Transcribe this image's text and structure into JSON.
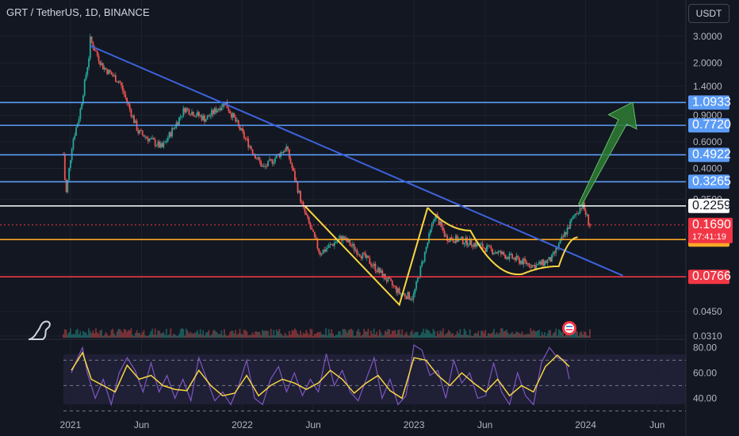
{
  "header": {
    "title": "GRT / TetherUS, 1D, BINANCE",
    "currency": "USDT",
    "countdown": "17:41:19"
  },
  "colors": {
    "background": "#131722",
    "up": "#26a69a",
    "down": "#ef5350",
    "trendline": "#3d63dd",
    "pattern": "#f7d640",
    "rsi": "#7e57c2",
    "rsi_ma": "#f7d640",
    "arrow": "#2e7d32"
  },
  "chart_data": [
    {
      "type": "candlestick",
      "title": "",
      "scale": "log",
      "ylim": [
        0.031,
        3.3
      ],
      "price_ticks": [
        "3.0000",
        "2.0000",
        "1.4000",
        "0.9000",
        "0.6000",
        "0.4000",
        "0.2500",
        "0.0800",
        "0.0450",
        "0.0310"
      ],
      "x_ticks": [
        "2021",
        "Jun",
        "2022",
        "Jun",
        "2023",
        "Jun",
        "2024",
        "Jun"
      ],
      "x_range": [
        "2020-12-17",
        "2024-08-01"
      ],
      "ohlc_path": [
        {
          "date": "2020-12-17",
          "price": 0.5
        },
        {
          "date": "2020-12-22",
          "price": 0.26
        },
        {
          "date": "2021-01-05",
          "price": 0.6
        },
        {
          "date": "2021-01-20",
          "price": 0.9
        },
        {
          "date": "2021-02-10",
          "price": 2.3
        },
        {
          "date": "2021-02-12",
          "price": 2.85
        },
        {
          "date": "2021-03-10",
          "price": 1.9
        },
        {
          "date": "2021-04-15",
          "price": 1.5
        },
        {
          "date": "2021-05-25",
          "price": 0.7
        },
        {
          "date": "2021-07-15",
          "price": 0.55
        },
        {
          "date": "2021-09-01",
          "price": 1.0
        },
        {
          "date": "2021-10-15",
          "price": 0.85
        },
        {
          "date": "2021-11-25",
          "price": 1.1
        },
        {
          "date": "2022-01-05",
          "price": 0.65
        },
        {
          "date": "2022-02-15",
          "price": 0.4
        },
        {
          "date": "2022-04-05",
          "price": 0.55
        },
        {
          "date": "2022-05-10",
          "price": 0.22
        },
        {
          "date": "2022-06-15",
          "price": 0.11
        },
        {
          "date": "2022-08-01",
          "price": 0.14
        },
        {
          "date": "2022-10-01",
          "price": 0.095
        },
        {
          "date": "2022-12-01",
          "price": 0.06
        },
        {
          "date": "2022-12-30",
          "price": 0.056
        },
        {
          "date": "2023-02-15",
          "price": 0.2
        },
        {
          "date": "2023-03-10",
          "price": 0.14
        },
        {
          "date": "2023-05-01",
          "price": 0.13
        },
        {
          "date": "2023-07-01",
          "price": 0.11
        },
        {
          "date": "2023-09-15",
          "price": 0.09
        },
        {
          "date": "2023-10-20",
          "price": 0.1
        },
        {
          "date": "2023-12-10",
          "price": 0.2
        },
        {
          "date": "2023-12-25",
          "price": 0.23
        },
        {
          "date": "2024-01-10",
          "price": 0.169
        }
      ],
      "horizontal_levels": [
        {
          "label": "1.0933",
          "value": 1.0933,
          "color": "#5b9cf6"
        },
        {
          "label": "0.7720",
          "value": 0.772,
          "color": "#5b9cf6"
        },
        {
          "label": "0.4922",
          "value": 0.4922,
          "color": "#5b9cf6"
        },
        {
          "label": "0.3265",
          "value": 0.3265,
          "color": "#5b9cf6"
        },
        {
          "label": "0.2259",
          "value": 0.2259,
          "color": "#ffffff"
        },
        {
          "label": "0.1352",
          "value": 0.1352,
          "color": "#f9a825"
        },
        {
          "label": "0.0766",
          "value": 0.0766,
          "color": "#f23645"
        }
      ],
      "current_price": {
        "label": "0.1690",
        "value": 0.169,
        "color": "#f23645"
      },
      "trendline": [
        {
          "date": "2021-02-12",
          "price": 2.6
        },
        {
          "date": "2024-03-20",
          "price": 0.078
        }
      ],
      "pattern_lines": [
        {
          "date": "2022-05-15",
          "price": 0.224
        },
        {
          "date": "2022-12-01",
          "price": 0.05
        },
        {
          "date": "2023-01-30",
          "price": 0.22
        }
      ],
      "cup_curve": [
        {
          "date": "2023-01-30",
          "price": 0.22
        },
        {
          "date": "2023-05-01",
          "price": 0.155
        },
        {
          "date": "2023-08-20",
          "price": 0.08
        },
        {
          "date": "2023-11-05",
          "price": 0.09
        },
        {
          "date": "2023-12-15",
          "price": 0.14
        }
      ],
      "arrow": {
        "from": {
          "date": "2023-12-20",
          "price": 0.23
        },
        "to": {
          "date": "2024-04-10",
          "price": 1.1
        }
      }
    },
    {
      "type": "line",
      "title": "",
      "ylim": [
        29,
        84
      ],
      "y_ticks": [
        "80.00",
        "60.00",
        "40.00"
      ],
      "bands": [
        70,
        50,
        30
      ],
      "series": [
        {
          "color": "#7e57c2",
          "points": [
            [
              0,
              60
            ],
            [
              8,
              72
            ],
            [
              14,
              80
            ],
            [
              20,
              60
            ],
            [
              30,
              40
            ],
            [
              40,
              55
            ],
            [
              50,
              35
            ],
            [
              60,
              60
            ],
            [
              70,
              72
            ],
            [
              80,
              62
            ],
            [
              90,
              45
            ],
            [
              100,
              68
            ],
            [
              110,
              45
            ],
            [
              120,
              58
            ],
            [
              130,
              40
            ],
            [
              140,
              55
            ],
            [
              150,
              38
            ],
            [
              160,
              72
            ],
            [
              170,
              55
            ],
            [
              180,
              38
            ],
            [
              190,
              45
            ],
            [
              200,
              35
            ],
            [
              210,
              50
            ],
            [
              220,
              70
            ],
            [
              230,
              40
            ],
            [
              240,
              35
            ],
            [
              250,
              55
            ],
            [
              260,
              65
            ],
            [
              270,
              45
            ],
            [
              280,
              60
            ],
            [
              290,
              42
            ],
            [
              300,
              55
            ],
            [
              310,
              45
            ],
            [
              320,
              75
            ],
            [
              330,
              50
            ],
            [
              340,
              62
            ],
            [
              350,
              45
            ],
            [
              360,
              38
            ],
            [
              370,
              55
            ],
            [
              380,
              72
            ],
            [
              390,
              40
            ],
            [
              400,
              55
            ],
            [
              410,
              35
            ],
            [
              420,
              42
            ],
            [
              430,
              82
            ],
            [
              440,
              78
            ],
            [
              450,
              58
            ],
            [
              460,
              62
            ],
            [
              470,
              40
            ],
            [
              480,
              70
            ],
            [
              490,
              52
            ],
            [
              500,
              60
            ],
            [
              510,
              40
            ],
            [
              520,
              42
            ],
            [
              530,
              68
            ],
            [
              540,
              45
            ],
            [
              550,
              35
            ],
            [
              560,
              60
            ],
            [
              570,
              42
            ],
            [
              580,
              35
            ],
            [
              590,
              68
            ],
            [
              600,
              80
            ],
            [
              610,
              72
            ],
            [
              620,
              70
            ],
            [
              625,
              55
            ]
          ]
        },
        {
          "color": "#f7d640",
          "points": [
            [
              0,
              62
            ],
            [
              14,
              76
            ],
            [
              25,
              55
            ],
            [
              40,
              50
            ],
            [
              55,
              45
            ],
            [
              70,
              66
            ],
            [
              85,
              55
            ],
            [
              100,
              58
            ],
            [
              115,
              50
            ],
            [
              130,
              47
            ],
            [
              145,
              46
            ],
            [
              160,
              62
            ],
            [
              175,
              50
            ],
            [
              190,
              42
            ],
            [
              205,
              44
            ],
            [
              220,
              58
            ],
            [
              235,
              42
            ],
            [
              250,
              50
            ],
            [
              265,
              55
            ],
            [
              280,
              52
            ],
            [
              295,
              47
            ],
            [
              310,
              52
            ],
            [
              325,
              62
            ],
            [
              340,
              55
            ],
            [
              355,
              44
            ],
            [
              370,
              52
            ],
            [
              385,
              58
            ],
            [
              400,
              46
            ],
            [
              415,
              40
            ],
            [
              430,
              72
            ],
            [
              445,
              70
            ],
            [
              460,
              58
            ],
            [
              475,
              50
            ],
            [
              490,
              60
            ],
            [
              505,
              52
            ],
            [
              520,
              45
            ],
            [
              535,
              55
            ],
            [
              550,
              42
            ],
            [
              565,
              50
            ],
            [
              580,
              45
            ],
            [
              595,
              65
            ],
            [
              610,
              74
            ],
            [
              625,
              65
            ]
          ]
        }
      ]
    }
  ]
}
